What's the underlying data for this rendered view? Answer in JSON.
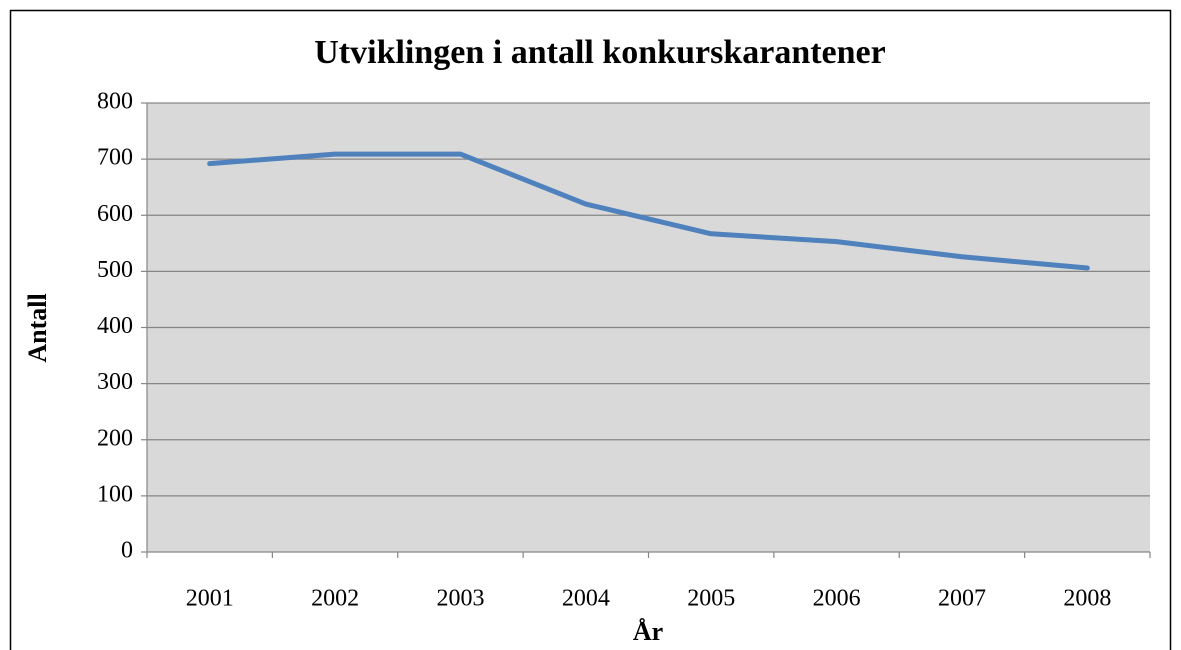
{
  "chart_data": {
    "type": "line",
    "title": "Utviklingen i antall konkurskarantener",
    "xlabel": "År",
    "ylabel": "Antall",
    "categories": [
      "2001",
      "2002",
      "2003",
      "2004",
      "2005",
      "2006",
      "2007",
      "2008"
    ],
    "values": [
      692,
      709,
      709,
      620,
      567,
      553,
      526,
      506
    ],
    "color": "#4f81bd",
    "ylim": [
      0,
      800
    ],
    "yticks": [
      0,
      100,
      200,
      300,
      400,
      500,
      600,
      700,
      800
    ],
    "grid": true
  }
}
